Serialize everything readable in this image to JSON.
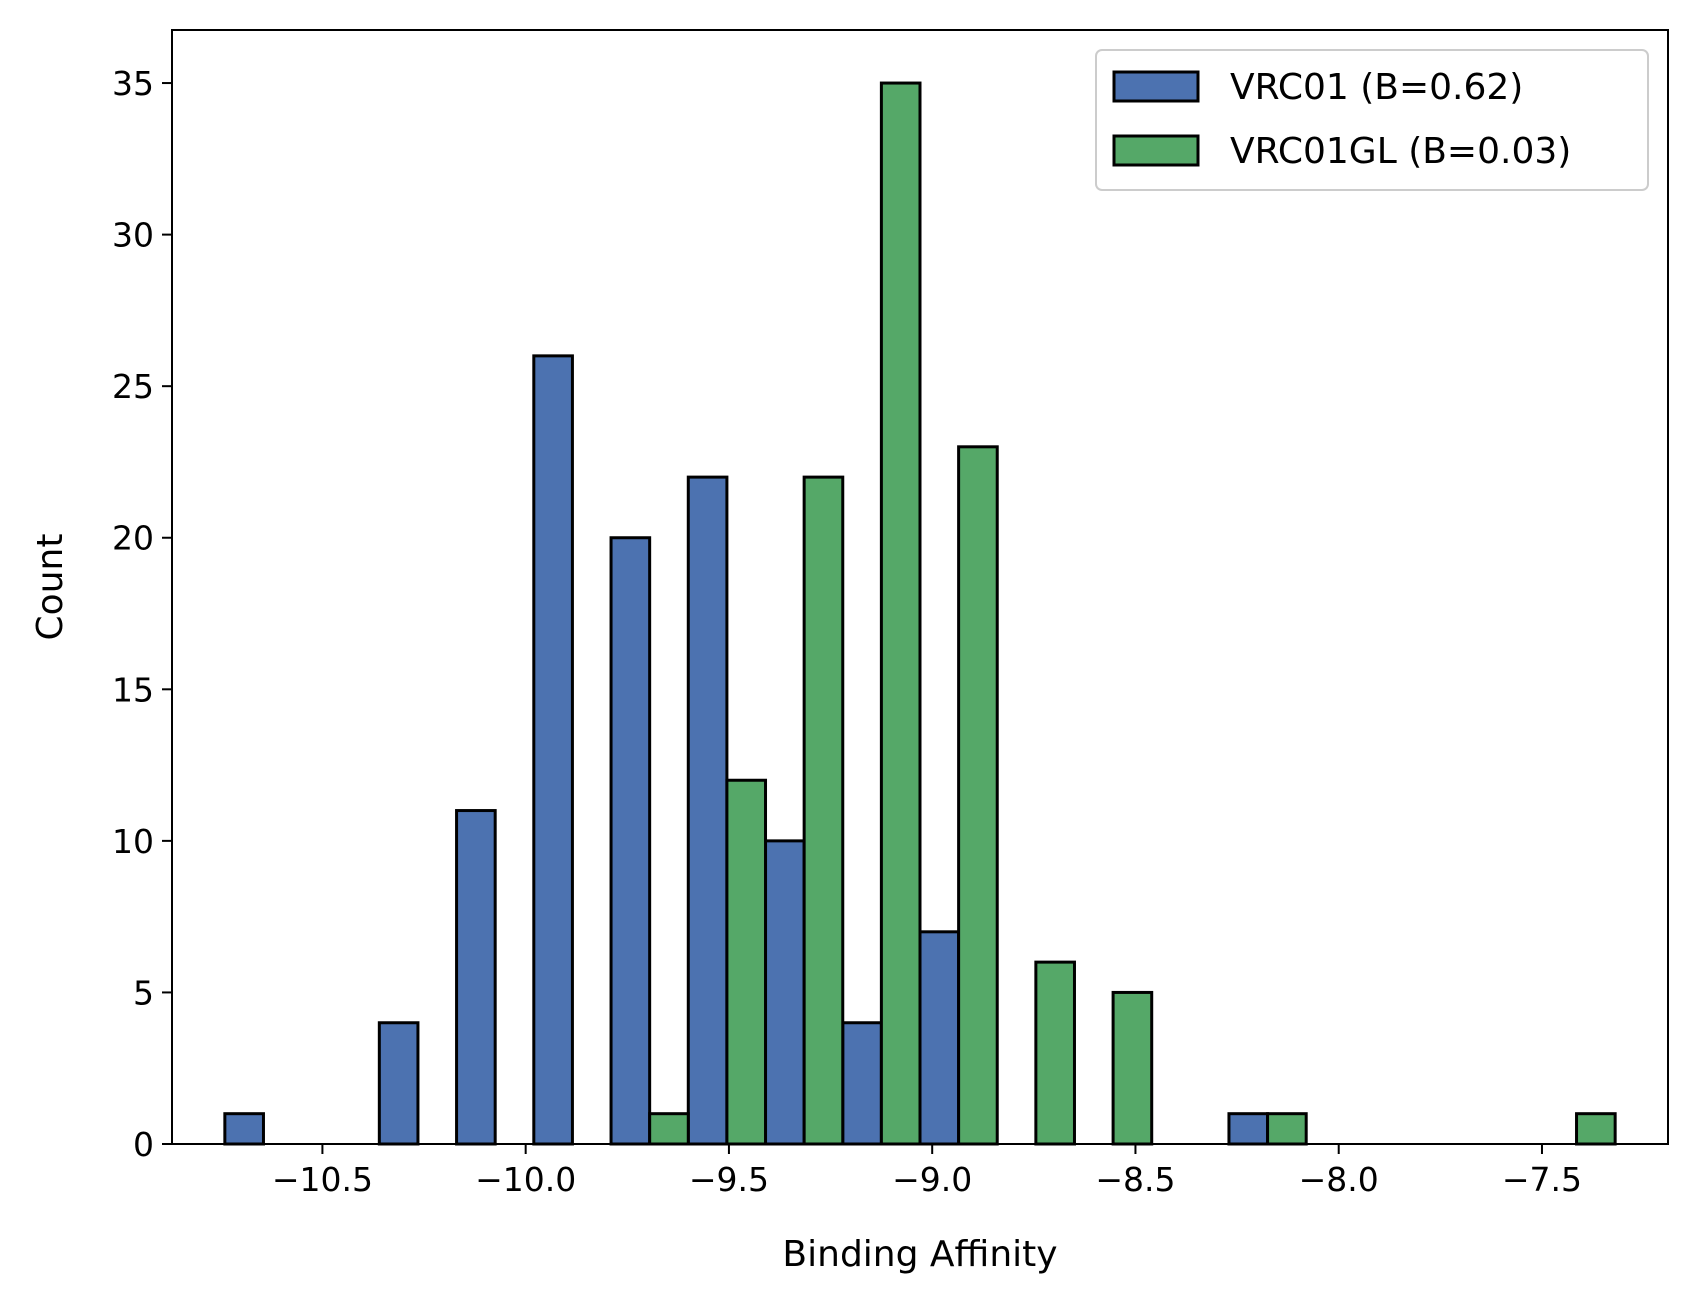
{
  "chart_data": {
    "type": "bar",
    "title": "",
    "xlabel": "Binding Affinity",
    "ylabel": "Count",
    "xlim": [
      -10.87,
      -7.19
    ],
    "ylim": [
      0,
      36.75
    ],
    "x_ticks": [
      -10.5,
      -10.0,
      -9.5,
      -9.0,
      -8.5,
      -8.0,
      -7.5
    ],
    "x_tick_labels": [
      "−10.5",
      "−10.0",
      "−9.5",
      "−9.0",
      "−8.5",
      "−8.0",
      "−7.5"
    ],
    "y_ticks": [
      0,
      5,
      10,
      15,
      20,
      25,
      30,
      35
    ],
    "y_tick_labels": [
      "0",
      "5",
      "10",
      "15",
      "20",
      "25",
      "30",
      "35"
    ],
    "bin_edges": [
      -10.74,
      -10.55,
      -10.36,
      -10.17,
      -9.98,
      -9.79,
      -9.6,
      -9.41,
      -9.22,
      -9.03,
      -8.84,
      -8.65,
      -8.46,
      -8.27,
      -8.08,
      -7.89,
      -7.7,
      -7.51,
      -7.32
    ],
    "grid": false,
    "legend_position": "top-right",
    "series": [
      {
        "name": "VRC01 (B=0.62)",
        "color": "#4c72b0",
        "values": [
          1,
          0,
          4,
          11,
          26,
          20,
          22,
          10,
          4,
          7,
          0,
          0,
          0,
          1,
          0,
          0,
          0,
          0
        ]
      },
      {
        "name": "VRC01GL (B=0.03)",
        "color": "#55a868",
        "values": [
          0,
          0,
          0,
          0,
          0,
          1,
          12,
          22,
          35,
          23,
          6,
          5,
          0,
          1,
          0,
          0,
          0,
          1
        ]
      }
    ]
  }
}
